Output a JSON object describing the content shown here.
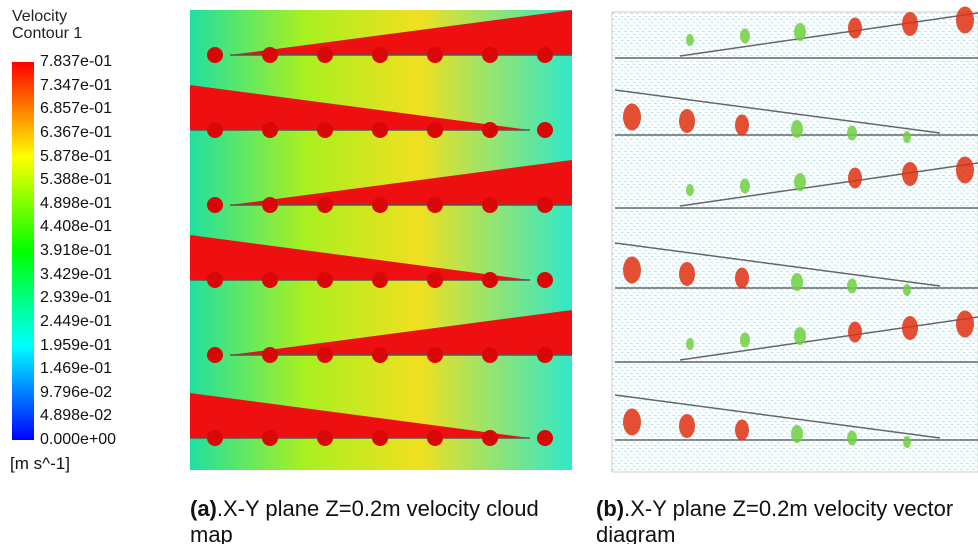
{
  "legend": {
    "title": [
      "Velocity",
      "Contour 1"
    ],
    "ticks": [
      "7.837e-01",
      "7.347e-01",
      "6.857e-01",
      "6.367e-01",
      "5.878e-01",
      "5.388e-01",
      "4.898e-01",
      "4.408e-01",
      "3.918e-01",
      "3.429e-01",
      "2.939e-01",
      "2.449e-01",
      "1.959e-01",
      "1.469e-01",
      "9.796e-02",
      "4.898e-02",
      "0.000e+00"
    ],
    "unit": "[m s^-1]"
  },
  "panels": [
    {
      "label": "(a)",
      "caption": ".X-Y plane Z=0.2m velocity cloud map"
    },
    {
      "label": "(b)",
      "caption": ".X-Y plane Z=0.2m velocity vector diagram"
    }
  ]
}
